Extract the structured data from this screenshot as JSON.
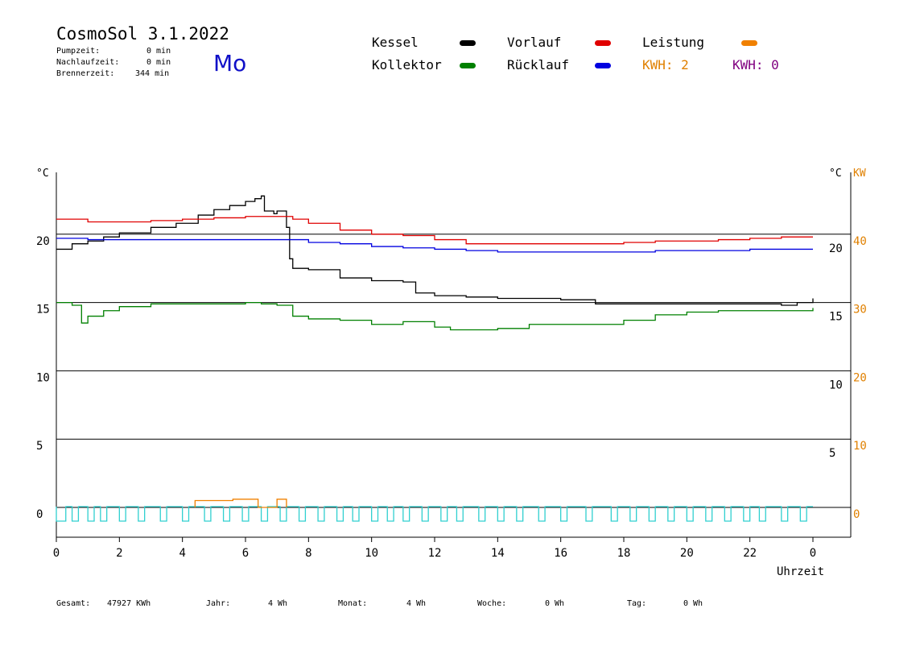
{
  "header": {
    "title": "CosmoSol 3.1.2022",
    "day": "Mo",
    "stats": [
      {
        "label": "Pumpzeit:",
        "value": "0 min"
      },
      {
        "label": "Nachlaufzeit:",
        "value": "0 min"
      },
      {
        "label": "Brennerzeit:",
        "value": "344 min"
      }
    ]
  },
  "legend": {
    "items": [
      {
        "label": "Kessel",
        "color": "#000000"
      },
      {
        "label": "Kollektor",
        "color": "#008000"
      },
      {
        "label": "Vorlauf",
        "color": "#e00000"
      },
      {
        "label": "Rücklauf",
        "color": "#0000e0"
      },
      {
        "label": "Leistung",
        "color": "#f08000"
      }
    ],
    "kwh1": "KWH: 2",
    "kwh1_color": "#e08000",
    "kwh2": "KWH: 0",
    "kwh2_color": "#800080"
  },
  "footer": {
    "items": [
      {
        "label": "Gesamt:",
        "value": "47927 KWh"
      },
      {
        "label": "Jahr:",
        "value": "4 Wh"
      },
      {
        "label": "Monat:",
        "value": "4 Wh"
      },
      {
        "label": "Woche:",
        "value": "0 Wh"
      },
      {
        "label": "Tag:",
        "value": "0 Wh"
      }
    ]
  },
  "chart_data": {
    "type": "line",
    "xlabel": "Uhrzeit",
    "x_ticks": [
      "0",
      "2",
      "4",
      "6",
      "8",
      "10",
      "12",
      "14",
      "16",
      "18",
      "20",
      "22",
      "0"
    ],
    "xlim": [
      0,
      24
    ],
    "y_left_label": "°C",
    "y_left_ticks": [
      "0",
      "5",
      "10",
      "15",
      "20"
    ],
    "ylim": [
      0,
      25
    ],
    "y_right_label": "°C",
    "y_right_ticks": [
      "5",
      "10",
      "15",
      "20"
    ],
    "y_kw_label": "KW",
    "y_kw_ticks": [
      "0",
      "10",
      "20",
      "30",
      "40"
    ],
    "y_kw_lim": [
      0,
      50
    ],
    "grid_lines_y": [
      0,
      5,
      10,
      15,
      20
    ],
    "series": [
      {
        "name": "Kessel",
        "color": "#000000",
        "x": [
          0,
          0.5,
          1,
          1.5,
          2,
          3,
          3.8,
          4.5,
          5,
          5.5,
          6,
          6.3,
          6.5,
          6.6,
          6.9,
          7.0,
          7.2,
          7.3,
          7.4,
          7.5,
          8,
          9,
          10,
          11,
          11.4,
          11.5,
          12,
          13,
          14,
          16,
          17,
          17.1,
          18,
          20,
          22,
          23,
          23.5,
          24
        ],
        "y": [
          18.9,
          19.3,
          19.5,
          19.8,
          20.1,
          20.5,
          20.8,
          21.4,
          21.8,
          22.1,
          22.4,
          22.6,
          22.8,
          21.7,
          21.5,
          21.7,
          21.7,
          20.5,
          18.2,
          17.5,
          17.4,
          16.8,
          16.6,
          16.5,
          15.7,
          15.7,
          15.5,
          15.4,
          15.3,
          15.2,
          15.2,
          14.9,
          14.9,
          14.9,
          14.9,
          14.8,
          15.0,
          15.3
        ]
      },
      {
        "name": "Kollektor",
        "color": "#008000",
        "x": [
          0,
          0.5,
          0.8,
          1,
          1.5,
          2,
          3,
          4,
          5,
          6,
          6.5,
          7,
          7.5,
          8,
          9,
          10,
          11,
          12,
          12.5,
          13,
          14,
          15,
          16,
          17,
          18,
          19,
          20,
          21,
          22,
          23,
          24
        ],
        "y": [
          15,
          14.8,
          13.5,
          14,
          14.4,
          14.7,
          14.9,
          14.9,
          14.9,
          15,
          14.9,
          14.8,
          14.0,
          13.8,
          13.7,
          13.4,
          13.6,
          13.2,
          13.0,
          13.0,
          13.1,
          13.4,
          13.4,
          13.4,
          13.7,
          14.1,
          14.3,
          14.4,
          14.4,
          14.4,
          14.6
        ]
      },
      {
        "name": "Vorlauf",
        "color": "#e00000",
        "x": [
          0,
          0.5,
          1,
          2,
          3,
          4,
          5,
          6,
          7,
          7.5,
          8,
          9,
          10,
          11,
          12,
          13,
          14,
          15,
          16,
          17,
          18,
          19,
          20,
          21,
          22,
          23,
          24
        ],
        "y": [
          21.1,
          21.1,
          20.9,
          20.9,
          21.0,
          21.1,
          21.2,
          21.3,
          21.3,
          21.1,
          20.8,
          20.3,
          20.0,
          19.9,
          19.6,
          19.3,
          19.3,
          19.3,
          19.3,
          19.3,
          19.4,
          19.5,
          19.5,
          19.6,
          19.7,
          19.8,
          19.8
        ]
      },
      {
        "name": "Rücklauf",
        "color": "#0000e0",
        "x": [
          0,
          1,
          2,
          3,
          4,
          5,
          6,
          7,
          8,
          9,
          10,
          11,
          12,
          13,
          14,
          15,
          16,
          17,
          18,
          19,
          20,
          21,
          22,
          23,
          24
        ],
        "y": [
          19.7,
          19.6,
          19.6,
          19.6,
          19.6,
          19.6,
          19.6,
          19.6,
          19.4,
          19.3,
          19.1,
          19.0,
          18.9,
          18.8,
          18.7,
          18.7,
          18.7,
          18.7,
          18.7,
          18.8,
          18.8,
          18.8,
          18.9,
          18.9,
          18.9
        ]
      },
      {
        "name": "Leistung",
        "color": "#f08000",
        "x": [
          4.4,
          4.4,
          5.6,
          5.6,
          6.4,
          6.4,
          7.0,
          7.0,
          7.3,
          7.3
        ],
        "y": [
          0,
          0.5,
          0.5,
          0.6,
          0.6,
          0,
          0,
          0.6,
          0.6,
          0
        ]
      }
    ],
    "pump_signal": {
      "color": "#30d0d0",
      "on_intervals": [
        [
          0,
          0.3
        ],
        [
          0.5,
          0.7
        ],
        [
          1,
          1.2
        ],
        [
          1.4,
          1.6
        ],
        [
          2,
          2.2
        ],
        [
          2.6,
          2.8
        ],
        [
          3.3,
          3.5
        ],
        [
          4,
          4.2
        ],
        [
          4.7,
          4.9
        ],
        [
          5.3,
          5.5
        ],
        [
          5.9,
          6.1
        ],
        [
          6.5,
          6.7
        ],
        [
          7.1,
          7.3
        ],
        [
          7.7,
          7.9
        ],
        [
          8.3,
          8.5
        ],
        [
          8.9,
          9.1
        ],
        [
          9.4,
          9.6
        ],
        [
          10,
          10.2
        ],
        [
          10.5,
          10.7
        ],
        [
          11,
          11.2
        ],
        [
          11.6,
          11.8
        ],
        [
          12.2,
          12.4
        ],
        [
          12.7,
          12.9
        ],
        [
          13.4,
          13.6
        ],
        [
          14,
          14.2
        ],
        [
          14.6,
          14.8
        ],
        [
          15.3,
          15.5
        ],
        [
          16,
          16.2
        ],
        [
          16.8,
          17.0
        ],
        [
          17.6,
          17.8
        ],
        [
          18.2,
          18.4
        ],
        [
          18.8,
          19.0
        ],
        [
          19.4,
          19.6
        ],
        [
          20.0,
          20.2
        ],
        [
          20.6,
          20.8
        ],
        [
          21.2,
          21.4
        ],
        [
          21.8,
          22.0
        ],
        [
          22.3,
          22.5
        ],
        [
          23.0,
          23.2
        ],
        [
          23.6,
          23.8
        ]
      ]
    }
  }
}
